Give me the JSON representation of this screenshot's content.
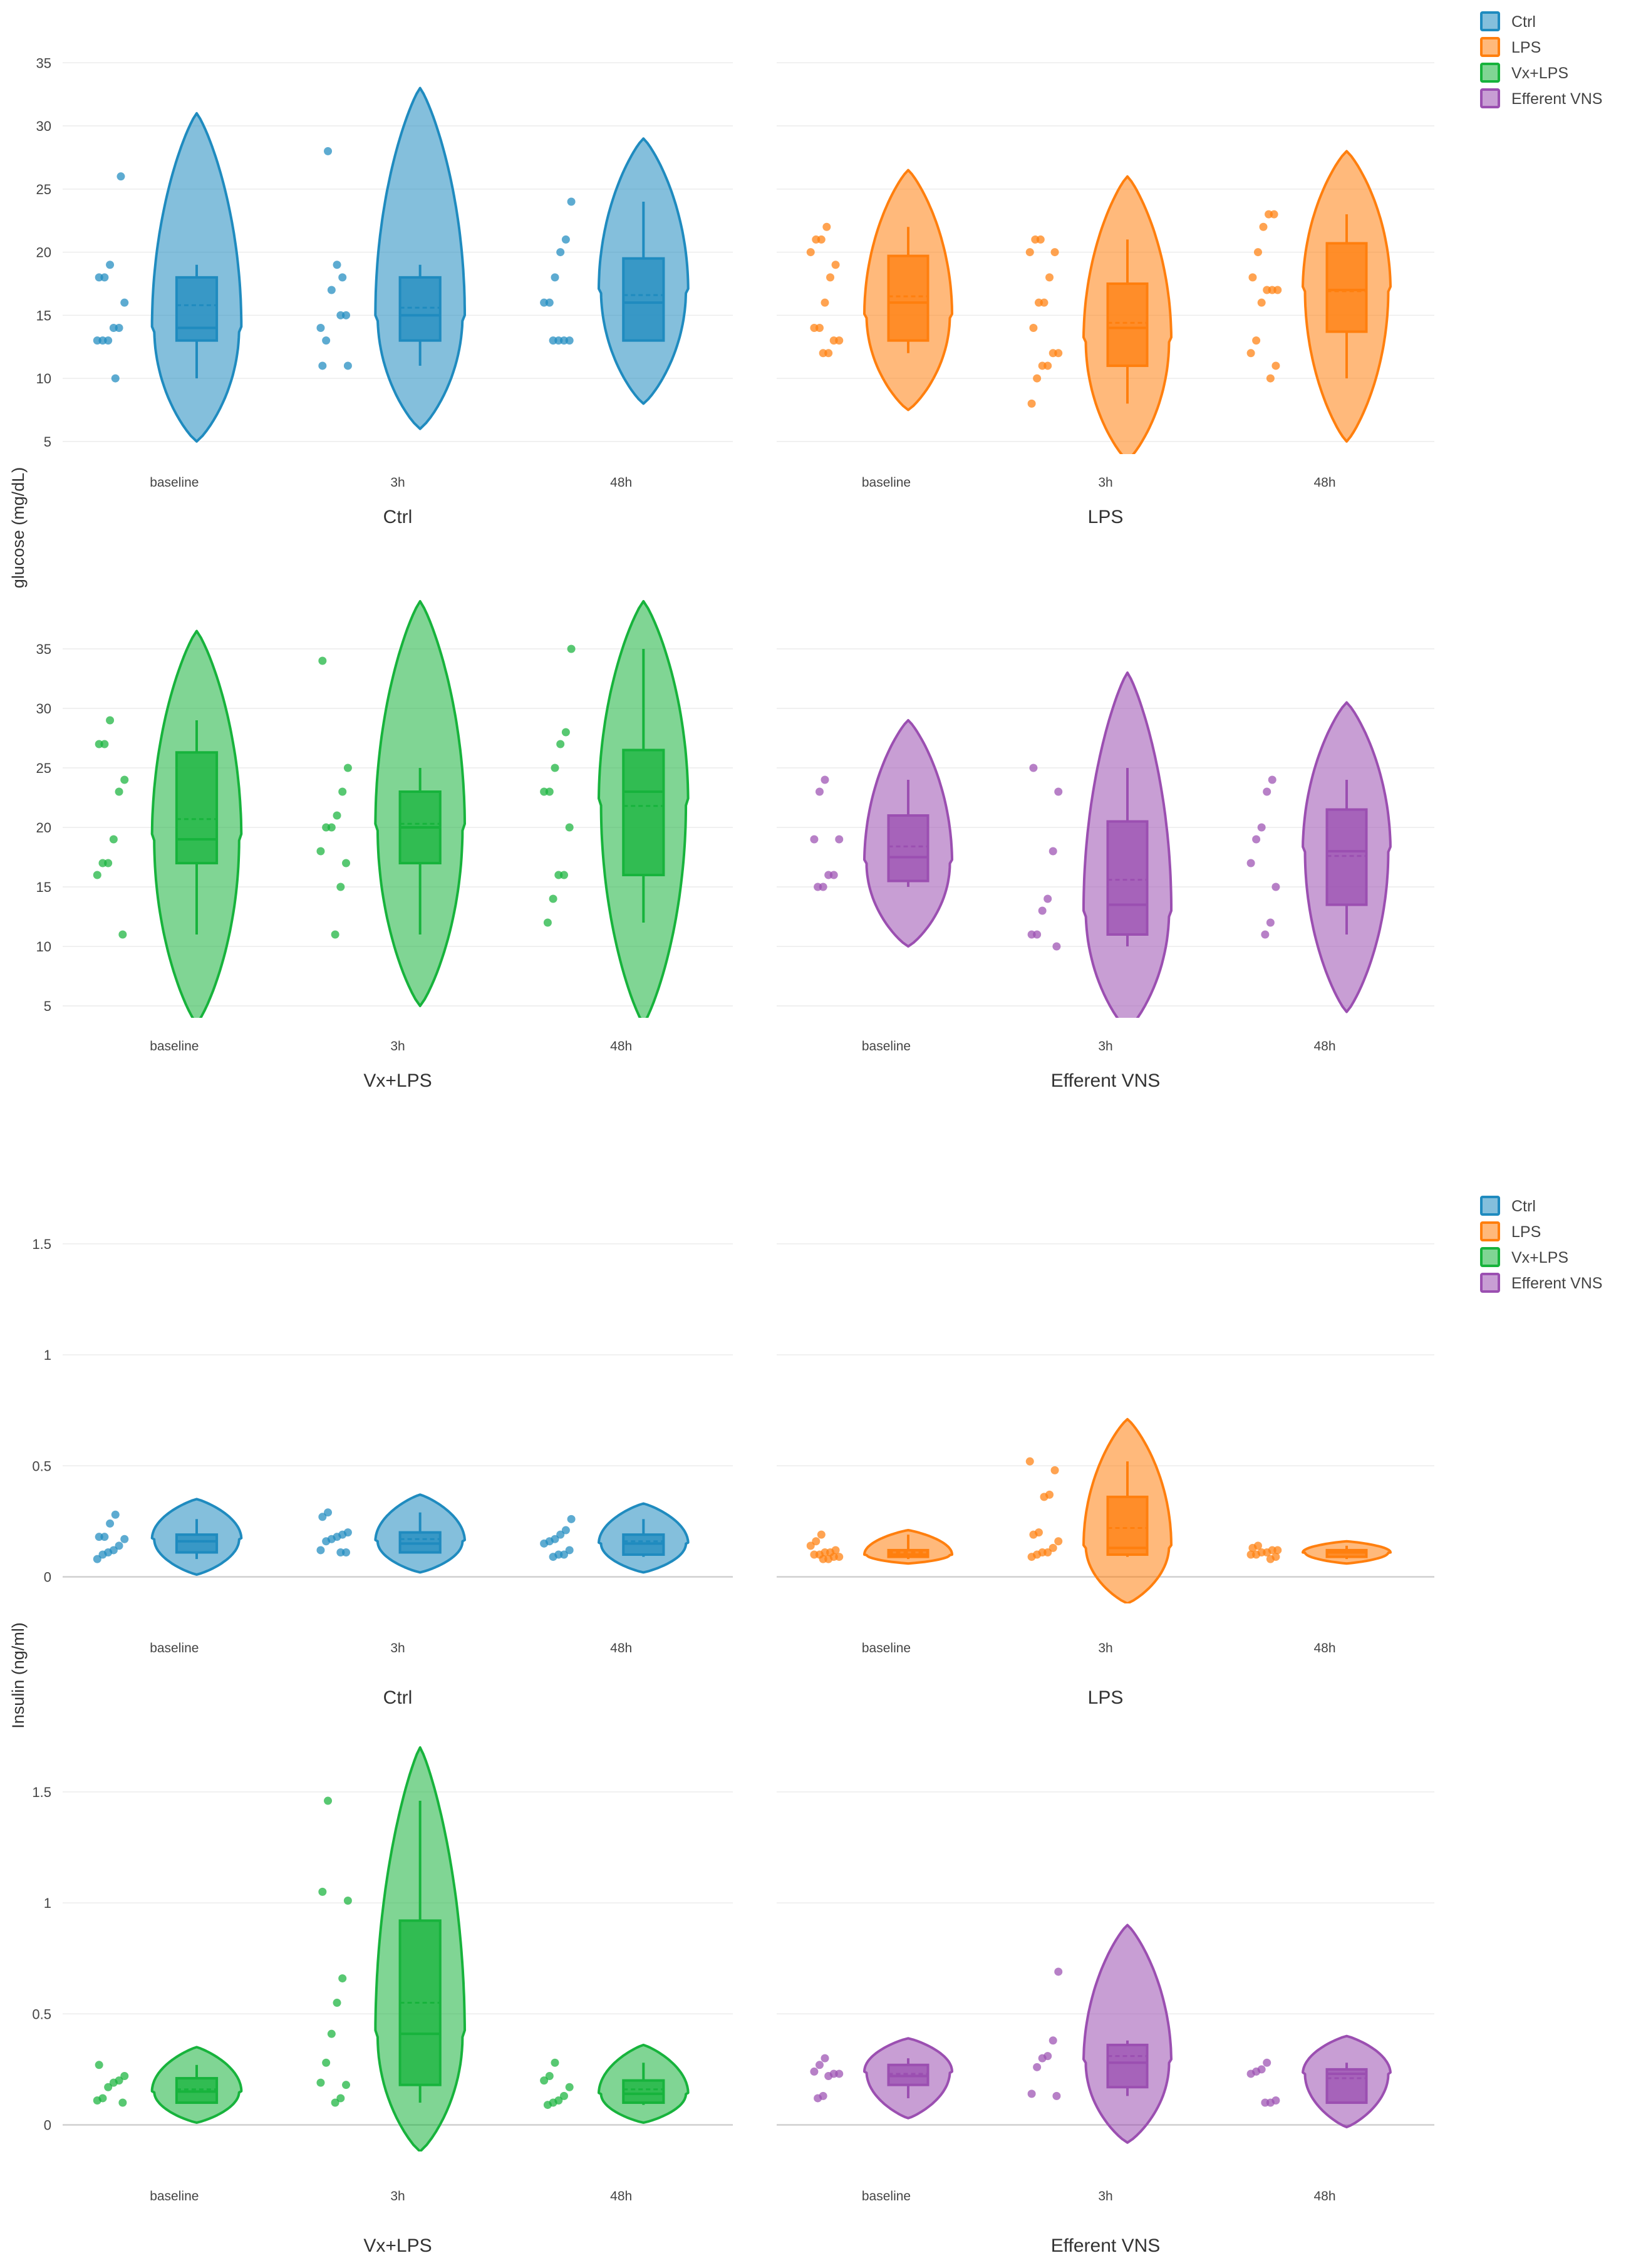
{
  "colors": {
    "Ctrl": "#1f8bbf",
    "LPS": "#ff7f0e",
    "Vx+LPS": "#17b33c",
    "Efferent VNS": "#9b4fb1",
    "grid": "#ececec",
    "tick": "#444444"
  },
  "legends": [
    {
      "items": [
        "Ctrl",
        "LPS",
        "Vx+LPS",
        "Efferent VNS"
      ]
    },
    {
      "items": [
        "Ctrl",
        "LPS",
        "Vx+LPS",
        "Efferent VNS"
      ]
    }
  ],
  "chart_data": [
    {
      "type": "violin",
      "ylabel": "glucose (mg/dL)",
      "yticks": [
        5,
        10,
        15,
        20,
        25,
        30,
        35
      ],
      "categories": [
        "baseline",
        "3h",
        "48h"
      ],
      "panels": [
        {
          "title": "Ctrl",
          "group": "Ctrl",
          "ylim": [
            4,
            37
          ],
          "points": [
            [
              13,
              13,
              13,
              14,
              14,
              16,
              18,
              18,
              19,
              10,
              26
            ],
            [
              15,
              15,
              14,
              13,
              17,
              19,
              18,
              11,
              11,
              28
            ],
            [
              13,
              13,
              13,
              13,
              16,
              16,
              18,
              20,
              21,
              24
            ]
          ],
          "box": [
            {
              "q1": 13,
              "median": 14,
              "q3": 18,
              "mean": 15.8,
              "min": 10,
              "max": 19
            },
            {
              "q1": 13,
              "median": 15,
              "q3": 18,
              "mean": 15.6,
              "min": 11,
              "max": 19
            },
            {
              "q1": 13,
              "median": 16,
              "q3": 19.5,
              "mean": 16.6,
              "min": 13,
              "max": 24
            }
          ],
          "violin": [
            {
              "min": 5,
              "max": 31,
              "peak": 14
            },
            {
              "min": 6,
              "max": 33,
              "peak": 15
            },
            {
              "min": 8,
              "max": 29,
              "peak": 17
            }
          ]
        },
        {
          "title": "LPS",
          "group": "LPS",
          "ylim": [
            4,
            37
          ],
          "points": [
            [
              12,
              12,
              13,
              13,
              14,
              14,
              16,
              18,
              19,
              20,
              21,
              21,
              22
            ],
            [
              8,
              10,
              11,
              11,
              12,
              12,
              14,
              16,
              16,
              18,
              20,
              20,
              21,
              21
            ],
            [
              10,
              11,
              12,
              13,
              16,
              17,
              17,
              17,
              18,
              20,
              22,
              23,
              23
            ]
          ],
          "box": [
            {
              "q1": 13,
              "median": 16,
              "q3": 19.7,
              "mean": 16.5,
              "min": 12,
              "max": 22
            },
            {
              "q1": 11,
              "median": 14,
              "q3": 17.5,
              "mean": 14.4,
              "min": 8,
              "max": 21
            },
            {
              "q1": 13.7,
              "median": 17,
              "q3": 20.7,
              "mean": 16.9,
              "min": 10,
              "max": 23
            }
          ],
          "violin": [
            {
              "min": 7.5,
              "max": 26.5,
              "peak": 15
            },
            {
              "min": 3.5,
              "max": 26,
              "peak": 13
            },
            {
              "min": 5,
              "max": 28,
              "peak": 17
            }
          ]
        },
        {
          "title": "Vx+LPS",
          "group": "Vx+LPS",
          "ylim": [
            4,
            39
          ],
          "points": [
            [
              11,
              16,
              17,
              17,
              19,
              23,
              24,
              27,
              27,
              29
            ],
            [
              11,
              15,
              17,
              18,
              20,
              20,
              21,
              23,
              25,
              34
            ],
            [
              12,
              14,
              16,
              16,
              20,
              23,
              23,
              25,
              27,
              28,
              35
            ]
          ],
          "box": [
            {
              "q1": 17,
              "median": 19,
              "q3": 26.3,
              "mean": 20.7,
              "min": 11,
              "max": 29
            },
            {
              "q1": 17,
              "median": 20,
              "q3": 23,
              "mean": 20.3,
              "min": 11,
              "max": 25
            },
            {
              "q1": 16,
              "median": 23,
              "q3": 26.5,
              "mean": 21.8,
              "min": 12,
              "max": 35
            }
          ],
          "violin": [
            {
              "min": 3.5,
              "max": 36.5,
              "peak": 19
            },
            {
              "min": 5,
              "max": 39,
              "peak": 20
            },
            {
              "min": 3.5,
              "max": 39,
              "peak": 22
            }
          ]
        },
        {
          "title": "Efferent VNS",
          "group": "Efferent VNS",
          "ylim": [
            4,
            39
          ],
          "points": [
            [
              15,
              15,
              16,
              16,
              19,
              19,
              23,
              24
            ],
            [
              10,
              11,
              11,
              13,
              14,
              18,
              23,
              25
            ],
            [
              11,
              12,
              15,
              17,
              19,
              20,
              23,
              24
            ]
          ],
          "box": [
            {
              "q1": 15.5,
              "median": 17.5,
              "q3": 21,
              "mean": 18.4,
              "min": 15,
              "max": 24
            },
            {
              "q1": 11,
              "median": 13.5,
              "q3": 20.5,
              "mean": 15.6,
              "min": 10,
              "max": 25
            },
            {
              "q1": 13.5,
              "median": 18,
              "q3": 21.5,
              "mean": 17.6,
              "min": 11,
              "max": 24
            }
          ],
          "violin": [
            {
              "min": 10,
              "max": 29,
              "peak": 17
            },
            {
              "min": 3,
              "max": 33,
              "peak": 13
            },
            {
              "min": 4.5,
              "max": 30.5,
              "peak": 18
            }
          ]
        }
      ]
    },
    {
      "type": "violin",
      "ylabel": "Insulin (ng/ml)",
      "yticks": [
        0,
        0.5,
        1,
        1.5
      ],
      "categories": [
        "baseline",
        "3h",
        "48h"
      ],
      "panels": [
        {
          "title": "Ctrl",
          "group": "Ctrl",
          "ylim": [
            -0.12,
            1.7
          ],
          "points": [
            [
              0.08,
              0.1,
              0.11,
              0.12,
              0.14,
              0.17,
              0.18,
              0.18,
              0.24,
              0.28
            ],
            [
              0.11,
              0.11,
              0.12,
              0.16,
              0.17,
              0.18,
              0.19,
              0.2,
              0.27,
              0.29
            ],
            [
              0.09,
              0.1,
              0.1,
              0.12,
              0.15,
              0.16,
              0.17,
              0.19,
              0.21,
              0.26
            ]
          ],
          "box": [
            {
              "q1": 0.11,
              "median": 0.16,
              "q3": 0.19,
              "mean": 0.16,
              "min": 0.08,
              "max": 0.26
            },
            {
              "q1": 0.11,
              "median": 0.15,
              "q3": 0.2,
              "mean": 0.17,
              "min": 0.11,
              "max": 0.29
            },
            {
              "q1": 0.1,
              "median": 0.15,
              "q3": 0.19,
              "mean": 0.16,
              "min": 0.09,
              "max": 0.26
            }
          ],
          "violin": [
            {
              "min": 0.01,
              "max": 0.35,
              "peak": 0.17
            },
            {
              "min": 0.02,
              "max": 0.37,
              "peak": 0.16
            },
            {
              "min": 0.02,
              "max": 0.33,
              "peak": 0.15
            }
          ]
        },
        {
          "title": "LPS",
          "group": "LPS",
          "ylim": [
            -0.12,
            1.7
          ],
          "points": [
            [
              0.08,
              0.08,
              0.09,
              0.09,
              0.1,
              0.1,
              0.11,
              0.11,
              0.12,
              0.14,
              0.16,
              0.19
            ],
            [
              0.09,
              0.1,
              0.11,
              0.11,
              0.13,
              0.16,
              0.19,
              0.2,
              0.36,
              0.37,
              0.48,
              0.52
            ],
            [
              0.08,
              0.09,
              0.1,
              0.1,
              0.11,
              0.11,
              0.12,
              0.12,
              0.13,
              0.14
            ]
          ],
          "box": [
            {
              "q1": 0.09,
              "median": 0.1,
              "q3": 0.12,
              "mean": 0.11,
              "min": 0.08,
              "max": 0.19
            },
            {
              "q1": 0.1,
              "median": 0.13,
              "q3": 0.36,
              "mean": 0.22,
              "min": 0.09,
              "max": 0.52
            },
            {
              "q1": 0.09,
              "median": 0.11,
              "q3": 0.12,
              "mean": 0.11,
              "min": 0.08,
              "max": 0.14
            }
          ],
          "violin": [
            {
              "min": 0.06,
              "max": 0.21,
              "peak": 0.1
            },
            {
              "min": -0.12,
              "max": 0.71,
              "peak": 0.14
            },
            {
              "min": 0.06,
              "max": 0.16,
              "peak": 0.11
            }
          ]
        },
        {
          "title": "Vx+LPS",
          "group": "Vx+LPS",
          "ylim": [
            -0.12,
            1.7
          ],
          "points": [
            [
              0.1,
              0.11,
              0.12,
              0.17,
              0.19,
              0.2,
              0.22,
              0.27
            ],
            [
              0.1,
              0.12,
              0.18,
              0.19,
              0.28,
              0.41,
              0.55,
              0.66,
              1.01,
              1.05,
              1.46
            ],
            [
              0.09,
              0.1,
              0.11,
              0.13,
              0.17,
              0.2,
              0.22,
              0.28
            ]
          ],
          "box": [
            {
              "q1": 0.1,
              "median": 0.15,
              "q3": 0.21,
              "mean": 0.16,
              "min": 0.1,
              "max": 0.27
            },
            {
              "q1": 0.18,
              "median": 0.41,
              "q3": 0.92,
              "mean": 0.55,
              "min": 0.1,
              "max": 1.46
            },
            {
              "q1": 0.1,
              "median": 0.14,
              "q3": 0.2,
              "mean": 0.16,
              "min": 0.09,
              "max": 0.28
            }
          ],
          "violin": [
            {
              "min": 0.01,
              "max": 0.35,
              "peak": 0.15
            },
            {
              "min": -0.12,
              "max": 1.7,
              "peak": 0.4
            },
            {
              "min": 0.01,
              "max": 0.36,
              "peak": 0.14
            }
          ]
        },
        {
          "title": "Efferent VNS",
          "group": "Efferent VNS",
          "ylim": [
            -0.12,
            1.7
          ],
          "points": [
            [
              0.12,
              0.13,
              0.22,
              0.23,
              0.23,
              0.24,
              0.27,
              0.3
            ],
            [
              0.13,
              0.14,
              0.26,
              0.3,
              0.31,
              0.38,
              0.69
            ],
            [
              0.1,
              0.1,
              0.11,
              0.23,
              0.24,
              0.25,
              0.28
            ]
          ],
          "box": [
            {
              "q1": 0.18,
              "median": 0.22,
              "q3": 0.27,
              "mean": 0.23,
              "min": 0.12,
              "max": 0.3
            },
            {
              "q1": 0.17,
              "median": 0.28,
              "q3": 0.36,
              "mean": 0.31,
              "min": 0.13,
              "max": 0.38
            },
            {
              "q1": 0.1,
              "median": 0.23,
              "q3": 0.25,
              "mean": 0.21,
              "min": 0.1,
              "max": 0.28
            }
          ],
          "violin": [
            {
              "min": 0.03,
              "max": 0.39,
              "peak": 0.24
            },
            {
              "min": -0.08,
              "max": 0.9,
              "peak": 0.28
            },
            {
              "min": -0.01,
              "max": 0.4,
              "peak": 0.23
            }
          ]
        }
      ]
    }
  ]
}
